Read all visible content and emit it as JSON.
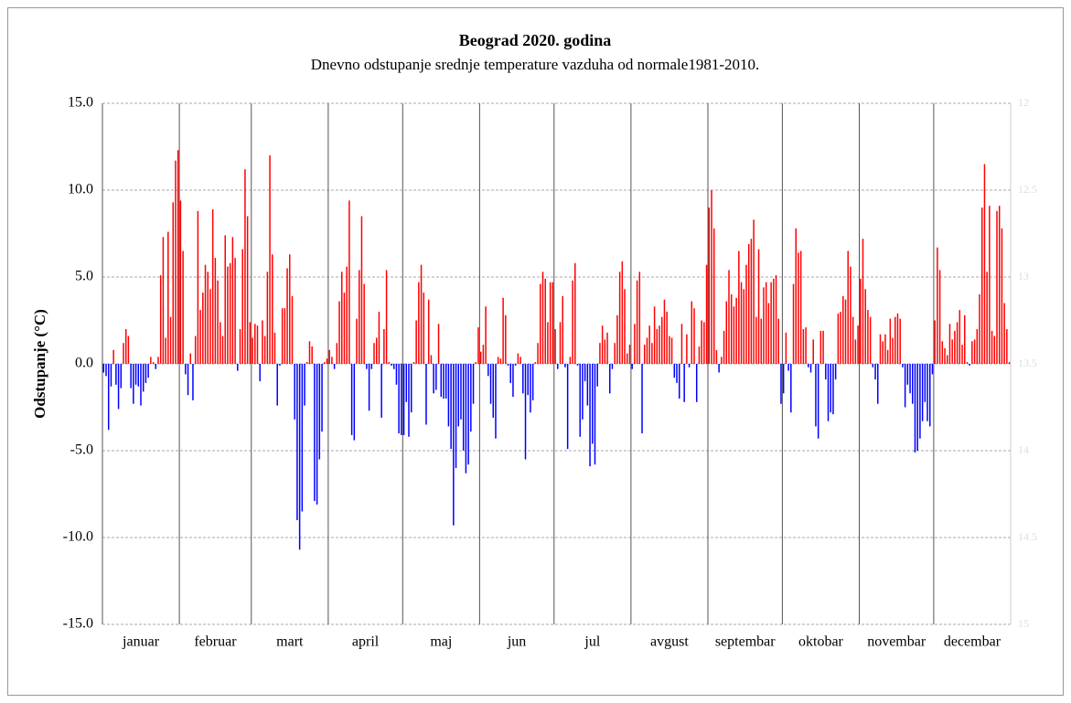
{
  "chart_data": {
    "type": "bar",
    "title": "Beograd  2020. godina",
    "subtitle": "Dnevno odstupanje srednje temperature vazduha od normale1981-2010.",
    "ylabel": "Odstupanje (°C)",
    "categories": [
      "januar",
      "februar",
      "mart",
      "april",
      "maj",
      "jun",
      "jul",
      "avgust",
      "septembar",
      "oktobar",
      "novembar",
      "decembar"
    ],
    "values": [
      [
        -0.5,
        -0.7,
        -3.8,
        -1.3,
        0.8,
        -1.2,
        -2.6,
        -1.4,
        1.2,
        2.0,
        1.6,
        -1.4,
        -2.3,
        -1.2,
        -1.3,
        -2.4,
        -1.6,
        -1.1,
        -0.8,
        0.4,
        0.1,
        -0.3,
        0.4,
        5.1,
        7.3,
        1.5,
        7.6,
        2.7,
        9.3,
        11.7,
        12.3
      ],
      [
        9.4,
        6.5,
        -0.6,
        -1.8,
        0.6,
        -2.1,
        1.6,
        8.8,
        3.1,
        4.1,
        5.7,
        5.3,
        4.3,
        8.9,
        6.1,
        4.8,
        2.4,
        1.6,
        7.4,
        5.6,
        5.8,
        7.3,
        6.1,
        -0.4,
        2.0,
        6.6,
        11.2,
        8.5,
        2.4
      ],
      [
        1.5,
        2.3,
        2.2,
        -1.0,
        2.5,
        1.6,
        5.3,
        12.0,
        6.3,
        1.8,
        -2.4,
        -0.1,
        3.2,
        3.2,
        5.5,
        6.3,
        3.9,
        -3.2,
        -9.0,
        -10.7,
        -8.5,
        -2.4,
        0.1,
        1.3,
        1.0,
        -7.9,
        -8.1,
        -5.5,
        -3.9,
        0.1,
        0.3
      ],
      [
        0.8,
        0.4,
        -0.3,
        1.2,
        3.6,
        5.3,
        4.1,
        5.6,
        9.4,
        -4.1,
        -4.4,
        2.6,
        5.4,
        8.5,
        4.6,
        -0.3,
        -2.7,
        -0.3,
        1.2,
        1.5,
        3.0,
        -3.1,
        2.0,
        5.4,
        0.1,
        -0.1,
        -0.3,
        -1.2,
        -4.0,
        -4.1
      ],
      [
        -4.1,
        -2.2,
        -4.2,
        -2.8,
        0.1,
        2.5,
        4.7,
        5.7,
        4.1,
        -3.5,
        3.7,
        0.5,
        -1.7,
        -1.5,
        2.3,
        -1.9,
        -2.0,
        -2.0,
        -3.6,
        -4.9,
        -9.3,
        -6.0,
        -3.6,
        -3.2,
        -5.0,
        -6.3,
        -5.8,
        -3.9,
        -2.3,
        0.1,
        2.1
      ],
      [
        0.7,
        1.1,
        3.3,
        -0.7,
        -2.3,
        -3.1,
        -4.3,
        0.4,
        0.3,
        3.8,
        2.8,
        -0.1,
        -1.1,
        -1.9,
        -0.1,
        0.6,
        0.4,
        -1.7,
        -5.5,
        -1.8,
        -2.8,
        -2.1,
        0.1,
        1.2,
        4.6,
        5.3,
        4.9,
        2.4,
        4.7,
        4.7
      ],
      [
        2.0,
        -0.3,
        2.4,
        3.9,
        -0.2,
        -4.9,
        0.4,
        4.8,
        5.8,
        -0.1,
        -4.2,
        -3.2,
        -1.0,
        -2.4,
        -5.9,
        -4.6,
        -5.8,
        -1.3,
        1.2,
        2.2,
        1.4,
        1.8,
        -1.7,
        -0.3,
        1.2,
        2.8,
        5.3,
        5.9,
        4.3,
        0.6,
        1.1
      ],
      [
        -0.3,
        2.3,
        4.8,
        5.3,
        -4.0,
        1.1,
        1.5,
        2.2,
        1.2,
        3.3,
        2.0,
        2.2,
        2.7,
        3.7,
        3.0,
        1.6,
        1.5,
        -0.8,
        -1.1,
        -2.0,
        2.3,
        -2.2,
        1.7,
        -0.2,
        3.6,
        3.2,
        -2.2,
        1.0,
        2.5,
        2.4,
        5.7
      ],
      [
        9.0,
        10.0,
        7.8,
        0.8,
        -0.5,
        0.4,
        1.9,
        3.6,
        5.4,
        4.0,
        3.3,
        3.8,
        6.5,
        4.7,
        4.3,
        5.7,
        6.9,
        7.2,
        8.3,
        2.7,
        6.6,
        2.6,
        4.4,
        4.7,
        3.5,
        4.7,
        4.9,
        5.1,
        2.6,
        -2.3
      ],
      [
        -1.7,
        1.8,
        -0.4,
        -2.8,
        4.6,
        7.8,
        6.4,
        6.5,
        2.0,
        2.1,
        -0.2,
        -0.5,
        1.4,
        -3.6,
        -4.3,
        1.9,
        1.9,
        -0.9,
        -3.3,
        -2.8,
        -2.9,
        -0.9,
        2.9,
        3.0,
        3.9,
        3.7,
        6.5,
        5.6,
        2.7,
        1.4,
        2.2
      ],
      [
        4.9,
        7.2,
        4.3,
        3.1,
        2.7,
        -0.2,
        -0.9,
        -2.3,
        1.7,
        1.3,
        1.7,
        0.8,
        2.6,
        1.5,
        2.7,
        2.9,
        2.6,
        -0.2,
        -2.5,
        -1.2,
        -1.7,
        -2.3,
        -5.1,
        -5.0,
        -4.3,
        -3.3,
        -2.2,
        -3.3,
        -3.6,
        -0.6
      ],
      [
        2.5,
        6.7,
        5.4,
        1.3,
        0.9,
        0.5,
        2.3,
        1.4,
        1.9,
        2.4,
        3.1,
        1.1,
        2.8,
        0.1,
        -0.1,
        1.3,
        1.4,
        2.0,
        4.0,
        9.0,
        11.5,
        5.3,
        9.1,
        1.9,
        1.6,
        8.8,
        9.1,
        7.8,
        3.5,
        2.0,
        0.1
      ]
    ],
    "colors": {
      "positive": "#ff0000",
      "negative": "#0000ff"
    },
    "ylim": [
      -15,
      15
    ],
    "yticks": [
      {
        "value": -15,
        "label": "-15.0"
      },
      {
        "value": -10,
        "label": "-10.0"
      },
      {
        "value": -5,
        "label": "-5.0"
      },
      {
        "value": 0,
        "label": "0.0"
      },
      {
        "value": 5,
        "label": "5.0"
      },
      {
        "value": 10,
        "label": "10.0"
      },
      {
        "value": 15,
        "label": "15.0"
      }
    ],
    "y2lim": [
      15,
      12
    ],
    "y2ticks": [
      15,
      14.5,
      14,
      13.5,
      13,
      12.5,
      12
    ],
    "grid": true
  }
}
